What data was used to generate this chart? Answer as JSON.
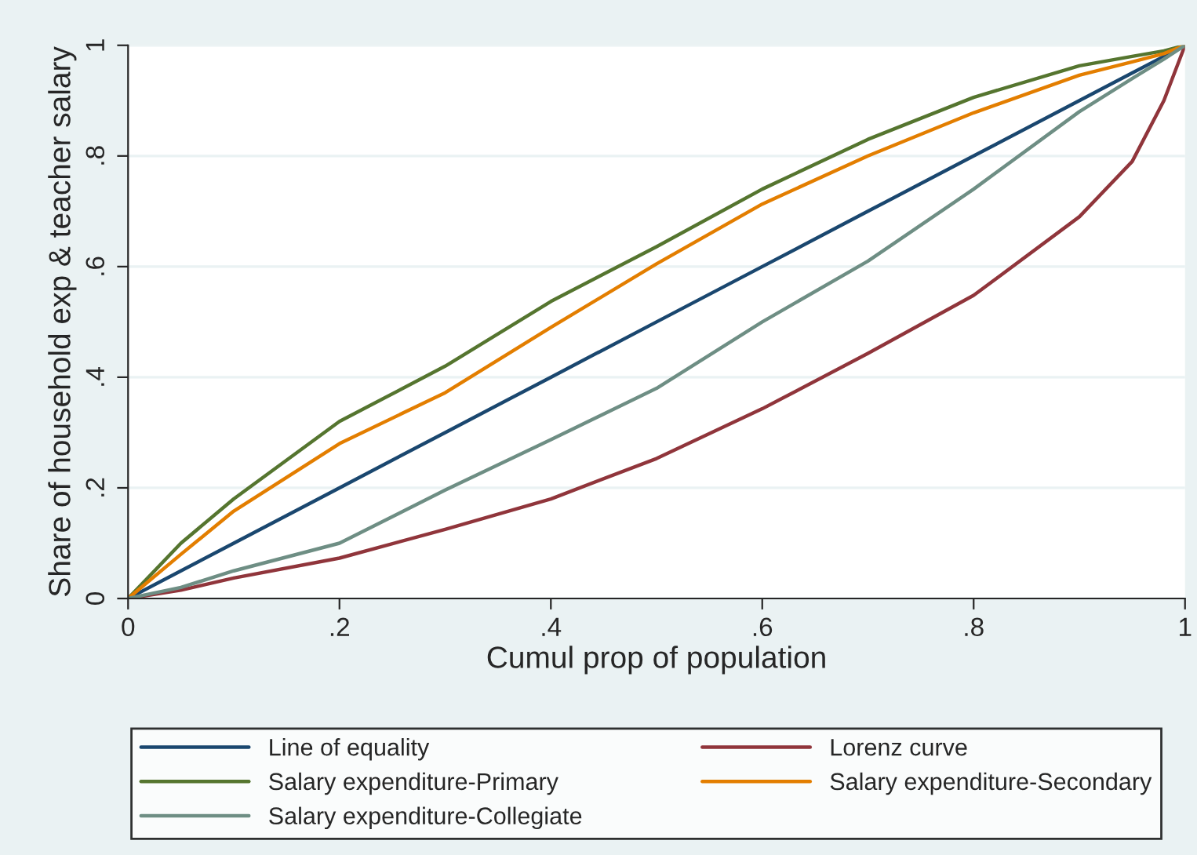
{
  "chart_data": {
    "type": "line",
    "xlabel": "Cumul prop of population",
    "ylabel": "Share of household exp & teacher salary",
    "x": [
      0,
      0.05,
      0.1,
      0.2,
      0.3,
      0.4,
      0.5,
      0.6,
      0.7,
      0.8,
      0.9,
      0.95,
      0.98,
      1
    ],
    "series": [
      {
        "name": "Line of equality",
        "color": "#1a476f",
        "values": [
          0,
          0.05,
          0.1,
          0.2,
          0.3,
          0.4,
          0.5,
          0.6,
          0.7,
          0.8,
          0.9,
          0.95,
          0.98,
          1
        ]
      },
      {
        "name": "Lorenz curve",
        "color": "#90353b",
        "values": [
          0,
          0.015,
          0.037,
          0.073,
          0.125,
          0.18,
          0.253,
          0.343,
          0.443,
          0.548,
          0.69,
          0.79,
          0.9,
          1
        ]
      },
      {
        "name": "Salary expenditure-Primary",
        "color": "#55752f",
        "values": [
          0,
          0.1,
          0.18,
          0.32,
          0.42,
          0.537,
          0.636,
          0.74,
          0.83,
          0.906,
          0.963,
          0.98,
          0.99,
          1
        ]
      },
      {
        "name": "Salary expenditure-Secondary",
        "color": "#e37e00",
        "values": [
          0,
          0.08,
          0.158,
          0.28,
          0.372,
          0.49,
          0.605,
          0.713,
          0.8,
          0.878,
          0.946,
          0.97,
          0.985,
          1
        ]
      },
      {
        "name": "Salary expenditure-Collegiate",
        "color": "#6e8e84",
        "values": [
          0,
          0.02,
          0.05,
          0.1,
          0.196,
          0.287,
          0.38,
          0.5,
          0.61,
          0.74,
          0.88,
          0.94,
          0.975,
          1
        ]
      }
    ],
    "xlim": [
      0,
      1
    ],
    "ylim": [
      0,
      1
    ],
    "xticks": [
      {
        "value": 0,
        "label": "0"
      },
      {
        "value": 0.2,
        "label": ".2"
      },
      {
        "value": 0.4,
        "label": ".4"
      },
      {
        "value": 0.6,
        "label": ".6"
      },
      {
        "value": 0.8,
        "label": ".8"
      },
      {
        "value": 1,
        "label": "1"
      }
    ],
    "yticks": [
      {
        "value": 0,
        "label": "0"
      },
      {
        "value": 0.2,
        "label": ".2"
      },
      {
        "value": 0.4,
        "label": ".4"
      },
      {
        "value": 0.6,
        "label": ".6"
      },
      {
        "value": 0.8,
        "label": ".8"
      },
      {
        "value": 1,
        "label": "1"
      }
    ],
    "grid": "y",
    "legend": "bottom",
    "marker": "none",
    "line_style": "solid"
  }
}
